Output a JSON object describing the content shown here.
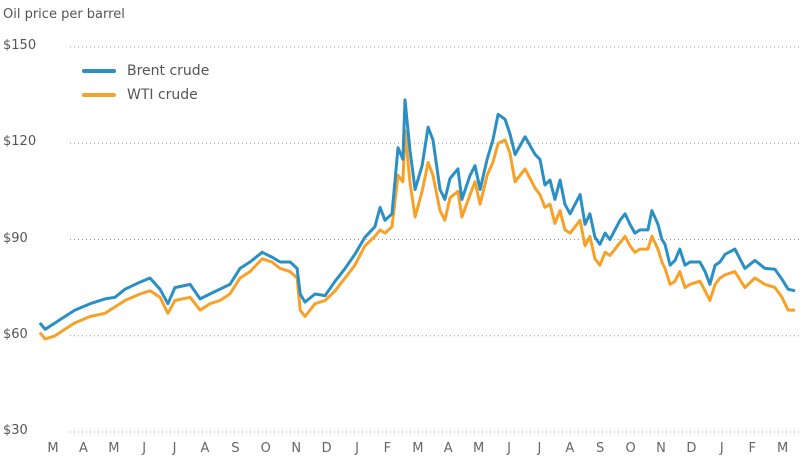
{
  "chart_data": {
    "type": "line",
    "title": "Oil price per barrel",
    "xlabel": "",
    "ylabel": "",
    "ylim": [
      30,
      150
    ],
    "yticks": [
      {
        "value": 150,
        "label": "$150"
      },
      {
        "value": 120,
        "label": "$120"
      },
      {
        "value": 90,
        "label": "$90"
      },
      {
        "value": 60,
        "label": "$60"
      },
      {
        "value": 30,
        "label": "$30"
      }
    ],
    "grid": "horizontal-dotted",
    "xticks": [
      "M",
      "A",
      "M",
      "J",
      "J",
      "A",
      "S",
      "O",
      "N",
      "D",
      "J",
      "F",
      "M",
      "A",
      "M",
      "J",
      "J",
      "A",
      "S",
      "O",
      "N",
      "D",
      "J",
      "F",
      "M"
    ],
    "legend_position": "top-left",
    "series": [
      {
        "name": "Brent crude",
        "color": "#2a8fc4"
      },
      {
        "name": "WTI crude",
        "color": "#f7a128"
      }
    ],
    "x_unit": "months since first tick",
    "points": [
      [
        -0.43,
        64,
        61
      ],
      [
        -0.26,
        62,
        59
      ],
      [
        0.07,
        64,
        60
      ],
      [
        0.39,
        66,
        62
      ],
      [
        0.72,
        68,
        64
      ],
      [
        1.22,
        70,
        66
      ],
      [
        1.71,
        71.5,
        67
      ],
      [
        2.04,
        72,
        69
      ],
      [
        2.37,
        74.5,
        71
      ],
      [
        2.86,
        76.7,
        73
      ],
      [
        3.19,
        78,
        74
      ],
      [
        3.52,
        74.5,
        72
      ],
      [
        3.78,
        70,
        67
      ],
      [
        4.01,
        75,
        71
      ],
      [
        4.51,
        76,
        72
      ],
      [
        4.84,
        71.5,
        68
      ],
      [
        5.16,
        73,
        70
      ],
      [
        5.49,
        74.5,
        71
      ],
      [
        5.82,
        76,
        73
      ],
      [
        6.15,
        81,
        78
      ],
      [
        6.48,
        83,
        80
      ],
      [
        6.88,
        86,
        84
      ],
      [
        7.2,
        84.5,
        83
      ],
      [
        7.47,
        83,
        81
      ],
      [
        7.8,
        83,
        80
      ],
      [
        8.03,
        81,
        78
      ],
      [
        8.13,
        73,
        68
      ],
      [
        8.29,
        70.5,
        66
      ],
      [
        8.62,
        73,
        70
      ],
      [
        8.95,
        72.5,
        71
      ],
      [
        9.28,
        77,
        74
      ],
      [
        9.61,
        81,
        78
      ],
      [
        9.93,
        85.4,
        82
      ],
      [
        10.26,
        90.7,
        88
      ],
      [
        10.59,
        94,
        91
      ],
      [
        10.76,
        100,
        93
      ],
      [
        10.92,
        96,
        92
      ],
      [
        11.15,
        98,
        94
      ],
      [
        11.35,
        118.6,
        110
      ],
      [
        11.51,
        115,
        108
      ],
      [
        11.58,
        133.5,
        124
      ],
      [
        11.74,
        118,
        108
      ],
      [
        11.91,
        105.6,
        97
      ],
      [
        12.14,
        113,
        105
      ],
      [
        12.34,
        125,
        114
      ],
      [
        12.5,
        121,
        110
      ],
      [
        12.73,
        105.6,
        99
      ],
      [
        12.89,
        102.5,
        96
      ],
      [
        13.06,
        109,
        103
      ],
      [
        13.32,
        112,
        105
      ],
      [
        13.45,
        102.5,
        97
      ],
      [
        13.72,
        110,
        104
      ],
      [
        13.88,
        113,
        108
      ],
      [
        14.05,
        105.6,
        101
      ],
      [
        14.28,
        115,
        110
      ],
      [
        14.47,
        121,
        114
      ],
      [
        14.64,
        129,
        120
      ],
      [
        14.87,
        127.5,
        121
      ],
      [
        15.03,
        123,
        117
      ],
      [
        15.2,
        116.5,
        108
      ],
      [
        15.53,
        122,
        112
      ],
      [
        15.86,
        116.5,
        106
      ],
      [
        16.02,
        115,
        104
      ],
      [
        16.18,
        107,
        100
      ],
      [
        16.35,
        108.5,
        101
      ],
      [
        16.51,
        102.5,
        95
      ],
      [
        16.68,
        108.5,
        99
      ],
      [
        16.84,
        101,
        93
      ],
      [
        17.01,
        98,
        92
      ],
      [
        17.34,
        104,
        96
      ],
      [
        17.5,
        94.7,
        88
      ],
      [
        17.66,
        98,
        91
      ],
      [
        17.83,
        90.7,
        84
      ],
      [
        17.99,
        88.5,
        82
      ],
      [
        18.16,
        92,
        86
      ],
      [
        18.32,
        90,
        85
      ],
      [
        18.65,
        96,
        89
      ],
      [
        18.82,
        98,
        91
      ],
      [
        18.98,
        94.7,
        88
      ],
      [
        19.14,
        92,
        86
      ],
      [
        19.31,
        93,
        87
      ],
      [
        19.57,
        93,
        87
      ],
      [
        19.7,
        99,
        91
      ],
      [
        19.9,
        94.7,
        87
      ],
      [
        20.03,
        90,
        83
      ],
      [
        20.13,
        88.5,
        81
      ],
      [
        20.3,
        82,
        76
      ],
      [
        20.46,
        83.5,
        77
      ],
      [
        20.62,
        87,
        80
      ],
      [
        20.79,
        82,
        75
      ],
      [
        20.95,
        83,
        76
      ],
      [
        21.28,
        83,
        77
      ],
      [
        21.45,
        80,
        74
      ],
      [
        21.61,
        76,
        71
      ],
      [
        21.78,
        82,
        76
      ],
      [
        21.94,
        83,
        78
      ],
      [
        22.11,
        85.4,
        79
      ],
      [
        22.43,
        87,
        80
      ],
      [
        22.76,
        81,
        75
      ],
      [
        23.09,
        83.5,
        78
      ],
      [
        23.42,
        81,
        76
      ],
      [
        23.75,
        80.7,
        75
      ],
      [
        23.98,
        77.6,
        72
      ],
      [
        24.18,
        74.5,
        68
      ],
      [
        24.41,
        74,
        68
      ]
    ]
  }
}
